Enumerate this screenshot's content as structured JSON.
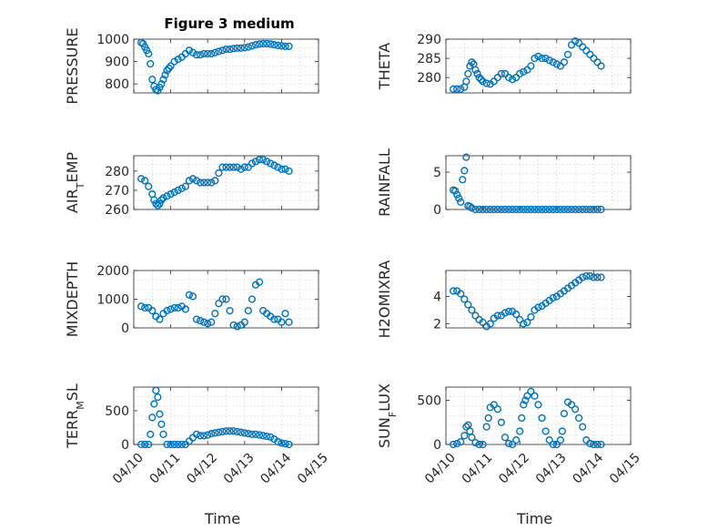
{
  "figure_title": "Figure 3 medium",
  "shared_xlabel": "Time",
  "chart_data": [
    {
      "type": "scatter",
      "id": "pressure",
      "ylabel": "PRESSURE",
      "xlim": [
        0,
        5
      ],
      "ylim": [
        760,
        1000
      ],
      "yticks": [
        800,
        900,
        1000
      ],
      "xticks": [],
      "xticklabels": [],
      "xlabel": "",
      "x": [
        0.2,
        0.25,
        0.3,
        0.35,
        0.4,
        0.45,
        0.5,
        0.55,
        0.6,
        0.65,
        0.7,
        0.75,
        0.8,
        0.85,
        0.9,
        0.95,
        1.0,
        1.1,
        1.2,
        1.3,
        1.4,
        1.5,
        1.6,
        1.7,
        1.8,
        1.9,
        2.0,
        2.1,
        2.2,
        2.3,
        2.4,
        2.5,
        2.6,
        2.7,
        2.8,
        2.9,
        3.0,
        3.1,
        3.2,
        3.3,
        3.4,
        3.5,
        3.6,
        3.7,
        3.8,
        3.9,
        4.0,
        4.1,
        4.2
      ],
      "y": [
        985,
        980,
        965,
        950,
        935,
        890,
        820,
        790,
        775,
        770,
        785,
        800,
        820,
        840,
        860,
        870,
        880,
        900,
        910,
        920,
        935,
        950,
        940,
        930,
        930,
        935,
        935,
        935,
        940,
        945,
        950,
        955,
        955,
        958,
        960,
        960,
        962,
        965,
        970,
        975,
        978,
        980,
        980,
        978,
        975,
        972,
        970,
        968,
        968
      ]
    },
    {
      "type": "scatter",
      "id": "theta",
      "ylabel": "THETA",
      "xlim": [
        0,
        5
      ],
      "ylim": [
        276,
        290
      ],
      "yticks": [
        280,
        285,
        290
      ],
      "xticks": [],
      "xticklabels": [],
      "xlabel": "",
      "x": [
        0.2,
        0.3,
        0.4,
        0.5,
        0.55,
        0.6,
        0.65,
        0.7,
        0.75,
        0.8,
        0.85,
        0.9,
        0.95,
        1.0,
        1.1,
        1.2,
        1.3,
        1.4,
        1.5,
        1.6,
        1.7,
        1.8,
        1.9,
        2.0,
        2.1,
        2.2,
        2.3,
        2.4,
        2.5,
        2.6,
        2.7,
        2.8,
        2.9,
        3.0,
        3.1,
        3.2,
        3.3,
        3.4,
        3.5,
        3.6,
        3.7,
        3.8,
        3.9,
        4.0,
        4.1,
        4.2
      ],
      "y": [
        277,
        277,
        277,
        277.5,
        279,
        281,
        283,
        284,
        283.5,
        282,
        281,
        280,
        279.5,
        279,
        278.5,
        278.3,
        279,
        280,
        281,
        281,
        280,
        279.5,
        280,
        281,
        281.5,
        282,
        283,
        285,
        285.5,
        285,
        285,
        284.5,
        284,
        283.5,
        283,
        284,
        286,
        288.5,
        289.5,
        289,
        288,
        287,
        286,
        285,
        284,
        283
      ]
    },
    {
      "type": "scatter",
      "id": "air_temp",
      "ylabel": "AIR_TEMP",
      "xlim": [
        0,
        5
      ],
      "ylim": [
        260,
        288
      ],
      "yticks": [
        260,
        270,
        280
      ],
      "xticks": [],
      "xticklabels": [],
      "xlabel": "",
      "x": [
        0.2,
        0.3,
        0.4,
        0.5,
        0.55,
        0.6,
        0.65,
        0.7,
        0.75,
        0.8,
        0.9,
        1.0,
        1.1,
        1.2,
        1.3,
        1.4,
        1.5,
        1.6,
        1.7,
        1.8,
        1.9,
        2.0,
        2.1,
        2.2,
        2.3,
        2.4,
        2.5,
        2.6,
        2.7,
        2.8,
        2.9,
        3.0,
        3.1,
        3.2,
        3.3,
        3.4,
        3.5,
        3.6,
        3.7,
        3.8,
        3.9,
        4.0,
        4.1,
        4.2
      ],
      "y": [
        276,
        275,
        272,
        268,
        265,
        263,
        262,
        263,
        265,
        266,
        267,
        268,
        269,
        270,
        271,
        272,
        275,
        276,
        275,
        274,
        274,
        274,
        274,
        275,
        279,
        282,
        282,
        282,
        282,
        282,
        281,
        282,
        282,
        284,
        285,
        286,
        286,
        285,
        284,
        283,
        282,
        281,
        281,
        280
      ]
    },
    {
      "type": "scatter",
      "id": "rainfall",
      "ylabel": "RAINFALL",
      "xlim": [
        0,
        5
      ],
      "ylim": [
        0,
        7.2
      ],
      "yticks": [
        0,
        5
      ],
      "xticks": [],
      "xticklabels": [],
      "xlabel": "",
      "x": [
        0.2,
        0.25,
        0.3,
        0.35,
        0.4,
        0.45,
        0.5,
        0.55,
        0.6,
        0.65,
        0.7,
        0.8,
        0.9,
        1.0,
        1.1,
        1.2,
        1.3,
        1.4,
        1.5,
        1.6,
        1.7,
        1.8,
        1.9,
        2.0,
        2.1,
        2.2,
        2.3,
        2.4,
        2.5,
        2.6,
        2.7,
        2.8,
        2.9,
        3.0,
        3.1,
        3.2,
        3.3,
        3.4,
        3.5,
        3.6,
        3.7,
        3.8,
        3.9,
        4.0,
        4.1,
        4.2
      ],
      "y": [
        2.6,
        2.5,
        2.0,
        1.5,
        1.0,
        4.0,
        5.2,
        7.0,
        0.5,
        0.4,
        0.2,
        0,
        0,
        0,
        0,
        0,
        0,
        0,
        0,
        0,
        0,
        0,
        0,
        0,
        0,
        0,
        0,
        0,
        0,
        0,
        0,
        0,
        0,
        0,
        0,
        0,
        0,
        0,
        0,
        0,
        0,
        0,
        0,
        0,
        0,
        0
      ]
    },
    {
      "type": "scatter",
      "id": "mixdepth",
      "ylabel": "MIXDEPTH",
      "xlim": [
        0,
        5
      ],
      "ylim": [
        0,
        2000
      ],
      "yticks": [
        0,
        1000,
        2000
      ],
      "xticks": [],
      "xticklabels": [],
      "xlabel": "",
      "x": [
        0.2,
        0.3,
        0.4,
        0.5,
        0.6,
        0.7,
        0.8,
        0.9,
        1.0,
        1.1,
        1.2,
        1.3,
        1.4,
        1.5,
        1.6,
        1.7,
        1.8,
        1.9,
        2.0,
        2.1,
        2.2,
        2.3,
        2.4,
        2.5,
        2.6,
        2.7,
        2.8,
        2.9,
        3.0,
        3.1,
        3.2,
        3.3,
        3.4,
        3.5,
        3.6,
        3.7,
        3.8,
        3.9,
        4.0,
        4.1,
        4.2
      ],
      "y": [
        750,
        700,
        700,
        600,
        400,
        300,
        500,
        600,
        650,
        700,
        700,
        750,
        650,
        1150,
        1100,
        300,
        250,
        200,
        150,
        200,
        500,
        850,
        1000,
        1000,
        600,
        100,
        50,
        100,
        200,
        600,
        1000,
        1500,
        1600,
        600,
        500,
        400,
        300,
        300,
        200,
        500,
        200
      ]
    },
    {
      "type": "scatter",
      "id": "h2omixra",
      "ylabel": "H2OMIXRA",
      "xlim": [
        0,
        5
      ],
      "ylim": [
        1.7,
        5.9
      ],
      "yticks": [
        2,
        4
      ],
      "xticks": [],
      "xticklabels": [],
      "xlabel": "",
      "x": [
        0.2,
        0.3,
        0.4,
        0.5,
        0.6,
        0.7,
        0.8,
        0.9,
        1.0,
        1.1,
        1.2,
        1.3,
        1.4,
        1.5,
        1.6,
        1.7,
        1.8,
        1.9,
        2.0,
        2.1,
        2.2,
        2.3,
        2.4,
        2.5,
        2.6,
        2.7,
        2.8,
        2.9,
        3.0,
        3.1,
        3.2,
        3.3,
        3.4,
        3.5,
        3.6,
        3.7,
        3.8,
        3.9,
        4.0,
        4.1,
        4.2
      ],
      "y": [
        4.4,
        4.4,
        4.2,
        3.8,
        3.4,
        3.0,
        2.6,
        2.3,
        2.1,
        1.8,
        2.0,
        2.4,
        2.6,
        2.6,
        2.8,
        2.9,
        2.9,
        2.7,
        2.3,
        2.0,
        2.1,
        2.5,
        3.0,
        3.2,
        3.3,
        3.5,
        3.7,
        3.9,
        4.0,
        4.2,
        4.4,
        4.6,
        4.8,
        5.0,
        5.2,
        5.4,
        5.5,
        5.5,
        5.4,
        5.4,
        5.4
      ]
    },
    {
      "type": "scatter",
      "id": "terr_msl",
      "ylabel": "TERR_MSL",
      "xlim": [
        0,
        5
      ],
      "ylim": [
        0,
        850
      ],
      "yticks": [
        0,
        500
      ],
      "xticks": [
        0,
        1,
        2,
        3,
        4,
        5
      ],
      "xticklabels": [
        "04/10",
        "04/11",
        "04/12",
        "04/13",
        "04/14",
        "04/15"
      ],
      "xlabel": "Time",
      "x": [
        0.2,
        0.3,
        0.4,
        0.45,
        0.5,
        0.55,
        0.6,
        0.65,
        0.7,
        0.75,
        0.8,
        0.9,
        1.0,
        1.1,
        1.2,
        1.3,
        1.4,
        1.5,
        1.6,
        1.7,
        1.8,
        1.9,
        2.0,
        2.1,
        2.2,
        2.3,
        2.4,
        2.5,
        2.6,
        2.7,
        2.8,
        2.9,
        3.0,
        3.1,
        3.2,
        3.3,
        3.4,
        3.5,
        3.6,
        3.7,
        3.8,
        3.9,
        4.0,
        4.1,
        4.2
      ],
      "y": [
        0,
        0,
        0,
        150,
        400,
        600,
        800,
        700,
        450,
        300,
        150,
        0,
        0,
        0,
        0,
        0,
        0,
        50,
        100,
        150,
        130,
        130,
        140,
        160,
        170,
        180,
        190,
        200,
        200,
        200,
        190,
        180,
        170,
        160,
        150,
        150,
        140,
        130,
        120,
        110,
        80,
        40,
        20,
        10,
        0
      ]
    },
    {
      "type": "scatter",
      "id": "sun_flux",
      "ylabel": "SUN_FLUX",
      "xlim": [
        0,
        5
      ],
      "ylim": [
        0,
        650
      ],
      "yticks": [
        0,
        500
      ],
      "xticks": [
        0,
        1,
        2,
        3,
        4,
        5
      ],
      "xticklabels": [
        "04/10",
        "04/11",
        "04/12",
        "04/13",
        "04/14",
        "04/15"
      ],
      "xlabel": "Time",
      "x": [
        0.2,
        0.3,
        0.4,
        0.5,
        0.55,
        0.6,
        0.65,
        0.7,
        0.8,
        0.9,
        1.0,
        1.1,
        1.15,
        1.2,
        1.3,
        1.4,
        1.5,
        1.6,
        1.7,
        1.8,
        1.9,
        2.0,
        2.05,
        2.1,
        2.15,
        2.2,
        2.3,
        2.4,
        2.5,
        2.6,
        2.7,
        2.8,
        2.9,
        3.0,
        3.1,
        3.15,
        3.2,
        3.3,
        3.4,
        3.5,
        3.6,
        3.7,
        3.8,
        3.9,
        4.0,
        4.1,
        4.2
      ],
      "y": [
        0,
        10,
        30,
        100,
        200,
        220,
        150,
        80,
        20,
        0,
        0,
        200,
        300,
        420,
        450,
        400,
        250,
        80,
        10,
        0,
        50,
        150,
        300,
        450,
        500,
        550,
        600,
        550,
        450,
        300,
        150,
        50,
        0,
        0,
        50,
        150,
        350,
        480,
        450,
        400,
        300,
        200,
        50,
        10,
        0,
        0,
        0
      ]
    }
  ]
}
